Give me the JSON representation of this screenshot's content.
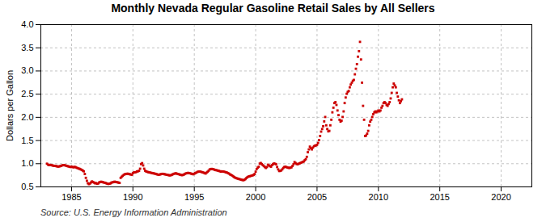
{
  "chart_data": {
    "type": "scatter",
    "title": "Monthly Nevada Regular Gasoline Retail Sales by All Sellers",
    "ylabel": "Dollars per Gallon",
    "caption": "Source: U.S. Energy Information Administration",
    "color": "#cc0000",
    "marker": "square",
    "grid": true,
    "xlim": [
      1982.5,
      2022.5
    ],
    "ylim": [
      0.5,
      4.0
    ],
    "xticks": [
      1985,
      1990,
      1995,
      2000,
      2005,
      2010,
      2015,
      2020
    ],
    "yticks": [
      0.5,
      {
        "value": 1.0,
        "label": "1.0"
      },
      1.5,
      {
        "value": 2.0,
        "label": "2.0"
      },
      2.5,
      {
        "value": 3.0,
        "label": "3.0"
      },
      3.5,
      {
        "value": 4.0,
        "label": "4.0"
      }
    ],
    "x": [
      1983.0,
      1983.083,
      1983.167,
      1983.25,
      1983.333,
      1983.417,
      1983.5,
      1983.583,
      1983.667,
      1983.75,
      1983.833,
      1983.917,
      1984.0,
      1984.083,
      1984.167,
      1984.25,
      1984.333,
      1984.417,
      1984.5,
      1984.583,
      1984.667,
      1984.75,
      1984.833,
      1984.917,
      1985.0,
      1985.083,
      1985.167,
      1985.25,
      1985.333,
      1985.417,
      1985.5,
      1985.583,
      1985.667,
      1985.75,
      1985.833,
      1985.917,
      1986.0,
      1986.083,
      1986.167,
      1986.25,
      1986.333,
      1986.417,
      1986.5,
      1986.583,
      1986.667,
      1986.75,
      1986.833,
      1986.917,
      1987.0,
      1987.083,
      1987.167,
      1987.25,
      1987.333,
      1987.417,
      1987.5,
      1987.583,
      1987.667,
      1987.75,
      1987.833,
      1987.917,
      1988.0,
      1988.083,
      1988.167,
      1988.25,
      1988.333,
      1988.417,
      1988.5,
      1988.583,
      1988.667,
      1988.75,
      1988.833,
      1988.917,
      1989.0,
      1989.083,
      1989.167,
      1989.25,
      1989.333,
      1989.417,
      1989.5,
      1989.583,
      1989.667,
      1989.75,
      1989.833,
      1989.917,
      1990.0,
      1990.083,
      1990.167,
      1990.25,
      1990.333,
      1990.417,
      1990.5,
      1990.583,
      1990.667,
      1990.75,
      1990.833,
      1990.917,
      1991.0,
      1991.083,
      1991.167,
      1991.25,
      1991.333,
      1991.417,
      1991.5,
      1991.583,
      1991.667,
      1991.75,
      1991.833,
      1991.917,
      1992.0,
      1992.083,
      1992.167,
      1992.25,
      1992.333,
      1992.417,
      1992.5,
      1992.583,
      1992.667,
      1992.75,
      1992.833,
      1992.917,
      1993.0,
      1993.083,
      1993.167,
      1993.25,
      1993.333,
      1993.417,
      1993.5,
      1993.583,
      1993.667,
      1993.75,
      1993.833,
      1993.917,
      1994.0,
      1994.083,
      1994.167,
      1994.25,
      1994.333,
      1994.417,
      1994.5,
      1994.583,
      1994.667,
      1994.75,
      1994.833,
      1994.917,
      1995.0,
      1995.083,
      1995.167,
      1995.25,
      1995.333,
      1995.417,
      1995.5,
      1995.583,
      1995.667,
      1995.75,
      1995.833,
      1995.917,
      1996.0,
      1996.083,
      1996.167,
      1996.25,
      1996.333,
      1996.417,
      1996.5,
      1996.583,
      1996.667,
      1996.75,
      1996.833,
      1996.917,
      1997.0,
      1997.083,
      1997.167,
      1997.25,
      1997.333,
      1997.417,
      1997.5,
      1997.583,
      1997.667,
      1997.75,
      1997.833,
      1997.917,
      1998.0,
      1998.083,
      1998.167,
      1998.25,
      1998.333,
      1998.417,
      1998.5,
      1998.583,
      1998.667,
      1998.75,
      1998.833,
      1998.917,
      1999.0,
      1999.083,
      1999.167,
      1999.25,
      1999.333,
      1999.417,
      1999.5,
      1999.583,
      1999.667,
      1999.75,
      1999.833,
      1999.917,
      2000.0,
      2000.083,
      2000.167,
      2000.25,
      2000.333,
      2000.417,
      2000.5,
      2000.583,
      2000.667,
      2000.75,
      2000.833,
      2000.917,
      2001.0,
      2001.083,
      2001.167,
      2001.25,
      2001.333,
      2001.417,
      2001.5,
      2001.583,
      2001.667,
      2001.75,
      2001.833,
      2001.917,
      2002.0,
      2002.083,
      2002.167,
      2002.25,
      2002.333,
      2002.417,
      2002.5,
      2002.583,
      2002.667,
      2002.75,
      2002.833,
      2002.917,
      2003.0,
      2003.083,
      2003.167,
      2003.25,
      2003.333,
      2003.417,
      2003.5,
      2003.583,
      2003.667,
      2003.75,
      2003.833,
      2003.917,
      2004.0,
      2004.083,
      2004.167,
      2004.25,
      2004.333,
      2004.417,
      2004.5,
      2004.583,
      2004.667,
      2004.75,
      2004.833,
      2004.917,
      2005.0,
      2005.083,
      2005.167,
      2005.25,
      2005.333,
      2005.417,
      2005.5,
      2005.583,
      2005.667,
      2005.75,
      2005.833,
      2005.917,
      2006.0,
      2006.083,
      2006.167,
      2006.25,
      2006.333,
      2006.417,
      2006.5,
      2006.583,
      2006.667,
      2006.75,
      2006.833,
      2006.917,
      2007.0,
      2007.083,
      2007.167,
      2007.25,
      2007.333,
      2007.417,
      2007.5,
      2007.583,
      2007.667,
      2007.75,
      2007.833,
      2007.917,
      2008.0,
      2008.083,
      2008.167,
      2008.25,
      2008.333,
      2008.417,
      2008.5,
      2008.583,
      2008.667,
      2008.75,
      2008.833,
      2008.917,
      2009.0,
      2009.083,
      2009.167,
      2009.25,
      2009.333,
      2009.417,
      2009.5,
      2009.583,
      2009.667,
      2009.75,
      2009.833,
      2009.917,
      2010.0,
      2010.083,
      2010.167,
      2010.25,
      2010.333,
      2010.417,
      2010.5,
      2010.583,
      2010.667,
      2010.75,
      2010.833,
      2010.917,
      2011.0,
      2011.083,
      2011.167,
      2011.25,
      2011.333,
      2011.417,
      2011.5,
      2011.583,
      2011.667,
      2011.75,
      2011.833,
      2011.917
    ],
    "values": [
      1.0,
      0.98,
      0.97,
      0.975,
      0.97,
      0.965,
      0.958,
      0.955,
      0.952,
      0.948,
      0.942,
      0.938,
      0.942,
      0.948,
      0.955,
      0.965,
      0.972,
      0.968,
      0.962,
      0.955,
      0.948,
      0.942,
      0.935,
      0.928,
      0.935,
      0.928,
      0.922,
      0.932,
      0.925,
      0.912,
      0.905,
      0.895,
      0.888,
      0.878,
      0.865,
      0.852,
      0.835,
      0.778,
      0.695,
      0.632,
      0.578,
      0.558,
      0.572,
      0.595,
      0.618,
      0.605,
      0.592,
      0.578,
      0.582,
      0.568,
      0.572,
      0.595,
      0.605,
      0.612,
      0.605,
      0.598,
      0.592,
      0.588,
      0.578,
      0.568,
      0.562,
      0.568,
      0.575,
      0.592,
      0.598,
      0.605,
      0.612,
      0.608,
      0.602,
      0.598,
      0.592,
      0.585,
      0.695,
      0.718,
      0.738,
      0.758,
      0.772,
      0.778,
      0.782,
      0.785,
      0.778,
      0.772,
      0.768,
      0.762,
      0.798,
      0.812,
      0.815,
      0.818,
      0.832,
      0.838,
      0.845,
      0.892,
      0.992,
      1.012,
      0.962,
      0.892,
      0.848,
      0.832,
      0.825,
      0.818,
      0.812,
      0.808,
      0.802,
      0.798,
      0.792,
      0.788,
      0.782,
      0.775,
      0.768,
      0.762,
      0.765,
      0.772,
      0.778,
      0.782,
      0.778,
      0.772,
      0.768,
      0.762,
      0.758,
      0.752,
      0.748,
      0.752,
      0.758,
      0.772,
      0.782,
      0.788,
      0.792,
      0.785,
      0.778,
      0.772,
      0.765,
      0.758,
      0.752,
      0.758,
      0.768,
      0.782,
      0.792,
      0.798,
      0.802,
      0.798,
      0.792,
      0.785,
      0.778,
      0.772,
      0.785,
      0.798,
      0.808,
      0.822,
      0.828,
      0.832,
      0.828,
      0.822,
      0.815,
      0.808,
      0.798,
      0.788,
      0.808,
      0.825,
      0.848,
      0.875,
      0.882,
      0.888,
      0.885,
      0.878,
      0.868,
      0.862,
      0.858,
      0.852,
      0.845,
      0.838,
      0.828,
      0.835,
      0.832,
      0.828,
      0.822,
      0.815,
      0.808,
      0.798,
      0.785,
      0.768,
      0.758,
      0.745,
      0.728,
      0.712,
      0.698,
      0.688,
      0.682,
      0.675,
      0.668,
      0.662,
      0.655,
      0.648,
      0.645,
      0.652,
      0.668,
      0.692,
      0.712,
      0.722,
      0.728,
      0.735,
      0.742,
      0.748,
      0.758,
      0.778,
      0.828,
      0.885,
      0.915,
      0.935,
      1.002,
      1.015,
      0.992,
      0.968,
      0.948,
      0.928,
      0.908,
      0.928,
      0.978,
      0.962,
      0.948,
      0.935,
      0.968,
      0.992,
      1.005,
      0.998,
      0.988,
      0.928,
      0.878,
      0.842,
      0.845,
      0.855,
      0.878,
      0.908,
      0.928,
      0.935,
      0.928,
      0.918,
      0.912,
      0.908,
      0.915,
      0.922,
      0.952,
      0.988,
      1.035,
      1.015,
      0.995,
      0.988,
      0.998,
      1.008,
      1.018,
      1.028,
      1.038,
      1.048,
      1.075,
      1.098,
      1.148,
      1.248,
      1.308,
      1.368,
      1.335,
      1.308,
      1.348,
      1.378,
      1.388,
      1.395,
      1.408,
      1.448,
      1.508,
      1.598,
      1.692,
      1.748,
      1.808,
      1.912,
      2.008,
      1.828,
      1.748,
      1.698,
      1.708,
      1.828,
      1.948,
      2.108,
      2.208,
      2.308,
      2.328,
      2.268,
      2.148,
      2.048,
      1.948,
      1.908,
      1.928,
      2.008,
      2.128,
      2.308,
      2.428,
      2.508,
      2.548,
      2.568,
      2.648,
      2.708,
      2.748,
      2.788,
      2.808,
      2.928,
      3.048,
      3.148,
      3.308,
      3.428,
      3.628,
      3.248,
      2.748,
      2.248,
      1.948,
      1.598,
      1.608,
      1.648,
      1.708,
      1.828,
      1.908,
      1.948,
      2.008,
      2.068,
      2.108,
      2.128,
      2.108,
      2.128,
      2.148,
      2.128,
      2.148,
      2.208,
      2.248,
      2.308,
      2.328,
      2.308,
      2.268,
      2.248,
      2.288,
      2.328,
      2.408,
      2.528,
      2.648,
      2.728,
      2.688,
      2.648,
      2.528,
      2.448,
      2.368,
      2.308,
      2.348,
      2.388
    ]
  }
}
